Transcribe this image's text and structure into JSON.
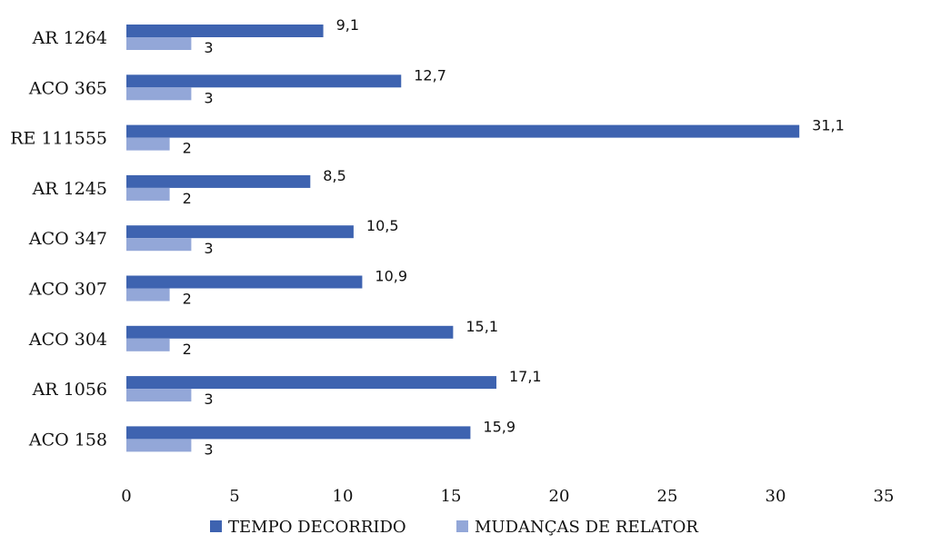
{
  "chart_data": {
    "type": "bar",
    "orientation": "horizontal",
    "categories": [
      "AR 1264",
      "ACO 365",
      "RE 111555",
      "AR 1245",
      "ACO 347",
      "ACO 307",
      "ACO 304",
      "AR 1056",
      "ACO 158"
    ],
    "series": [
      {
        "name": "TEMPO DECORRIDO",
        "color": "#3e63b0",
        "values": [
          9.1,
          12.7,
          31.1,
          8.5,
          10.5,
          10.9,
          15.1,
          17.1,
          15.9
        ],
        "labels": [
          "9,1",
          "12,7",
          "31,1",
          "8,5",
          "10,5",
          "10,9",
          "15,1",
          "17,1",
          "15,9"
        ]
      },
      {
        "name": "MUDANÇAS DE RELATOR",
        "color": "#93a7d8",
        "values": [
          3,
          3,
          2,
          2,
          3,
          2,
          2,
          3,
          3
        ],
        "labels": [
          "3",
          "3",
          "2",
          "2",
          "3",
          "2",
          "2",
          "3",
          "3"
        ]
      }
    ],
    "xlim": [
      0,
      35
    ],
    "xticks": [
      0,
      5,
      10,
      15,
      20,
      25,
      30,
      35
    ],
    "xtick_labels": [
      "0",
      "5",
      "10",
      "15",
      "20",
      "25",
      "30",
      "35"
    ],
    "grid": false,
    "legend_position": "bottom"
  }
}
